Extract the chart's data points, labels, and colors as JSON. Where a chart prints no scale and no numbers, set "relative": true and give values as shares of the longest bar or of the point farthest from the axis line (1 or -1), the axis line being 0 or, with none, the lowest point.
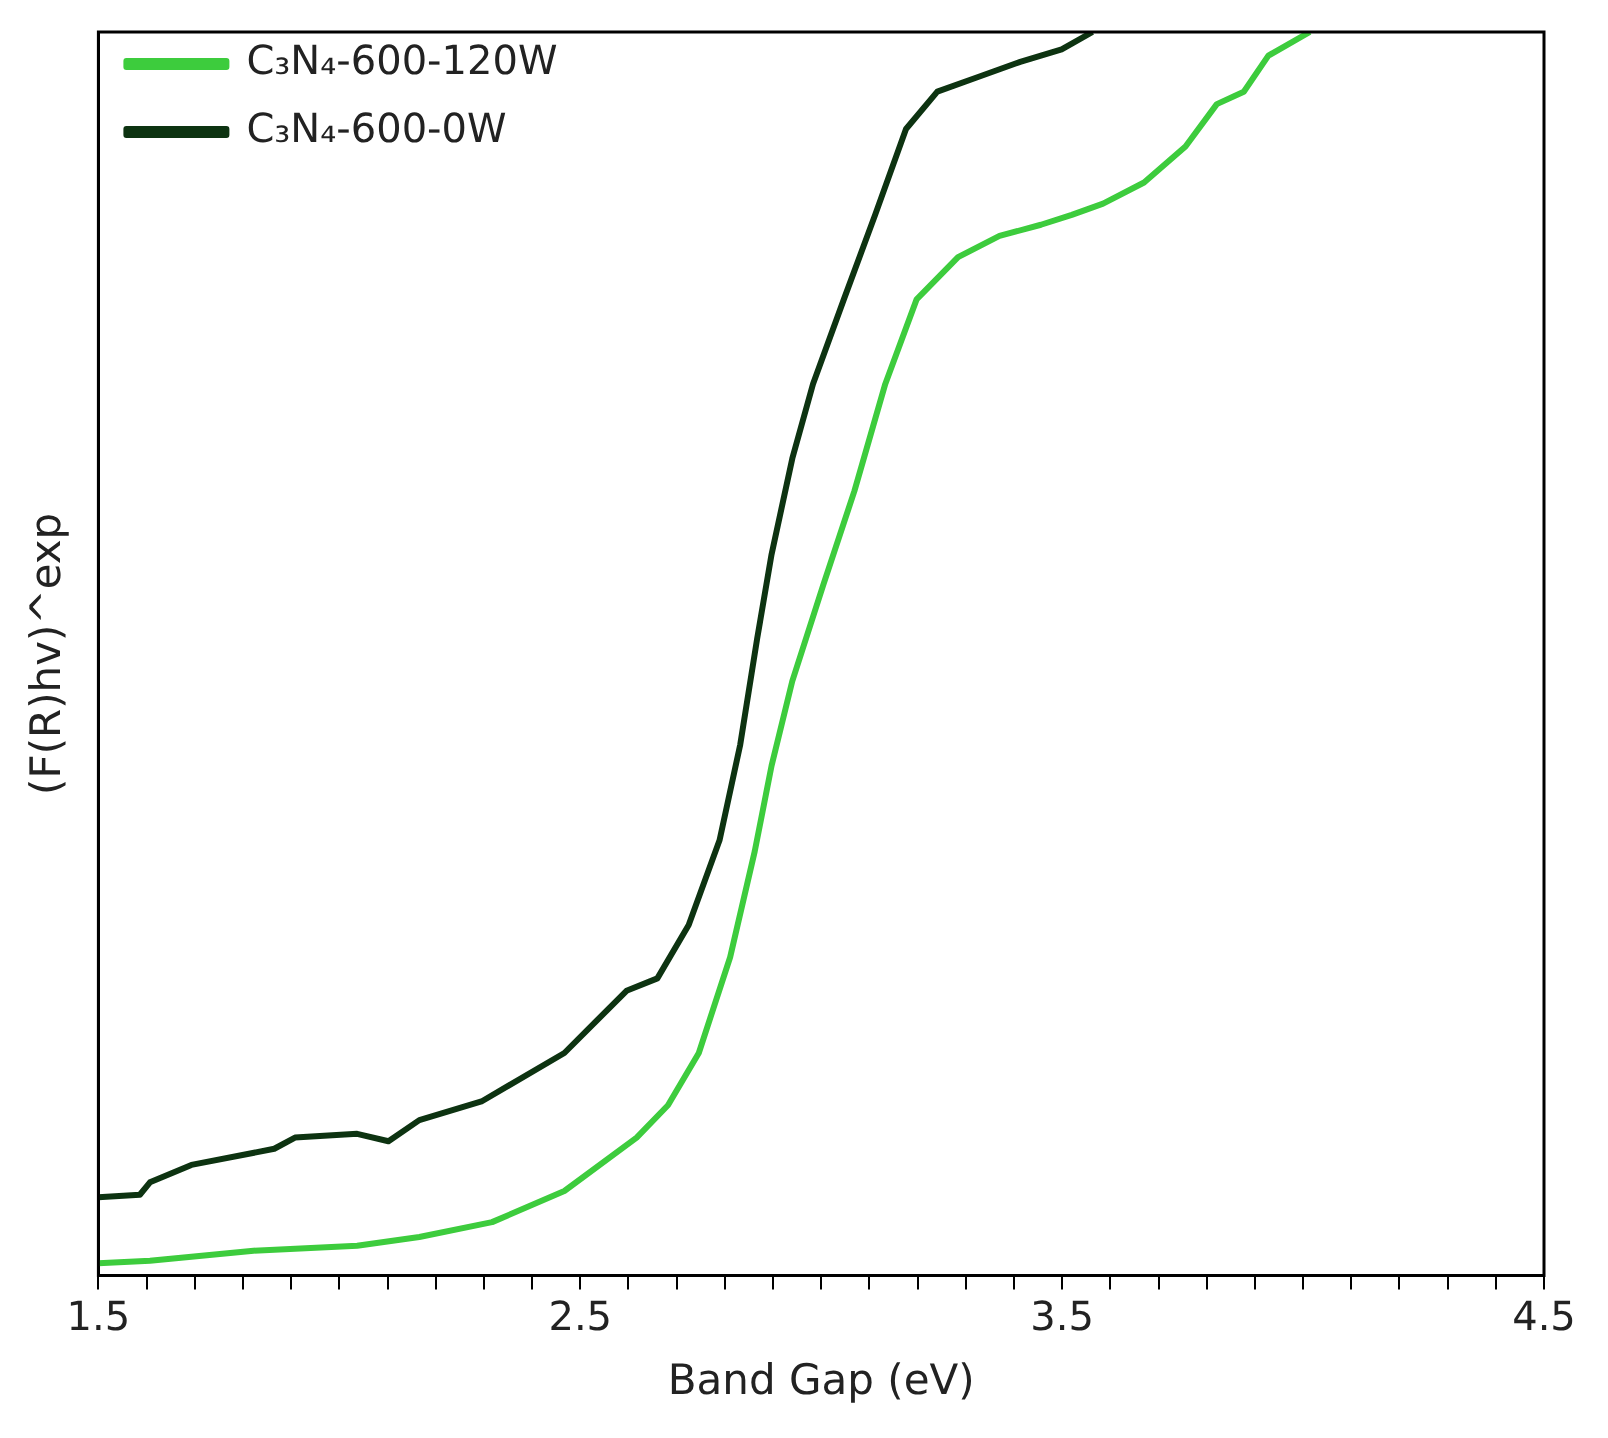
{
  "chart_data": {
    "type": "line",
    "xlabel": "Band Gap (eV)",
    "ylabel": "(F(R)hv)^exp",
    "relative": true,
    "legend": "top left",
    "marker": "none",
    "line_style": "solid",
    "grid": false,
    "xlim": [
      1.5,
      4.5
    ],
    "xticks": [
      1.5,
      {
        "value": 1.6,
        "label": null
      },
      {
        "value": 1.7,
        "label": null
      },
      {
        "value": 1.8,
        "label": null
      },
      {
        "value": 1.9,
        "label": null
      },
      {
        "value": 2.0,
        "label": null
      },
      {
        "value": 2.1,
        "label": null
      },
      {
        "value": 2.2,
        "label": null
      },
      {
        "value": 2.3,
        "label": null
      },
      {
        "value": 2.4,
        "label": null
      },
      2.5,
      {
        "value": 2.6,
        "label": null
      },
      {
        "value": 2.7,
        "label": null
      },
      {
        "value": 2.8,
        "label": null
      },
      {
        "value": 2.9,
        "label": null
      },
      {
        "value": 3.0,
        "label": null
      },
      {
        "value": 3.1,
        "label": null
      },
      {
        "value": 3.2,
        "label": null
      },
      {
        "value": 3.3,
        "label": null
      },
      {
        "value": 3.4,
        "label": null
      },
      3.5,
      {
        "value": 3.6,
        "label": null
      },
      {
        "value": 3.7,
        "label": null
      },
      {
        "value": 3.8,
        "label": null
      },
      {
        "value": 3.9,
        "label": null
      },
      {
        "value": 4.0,
        "label": null
      },
      {
        "value": 4.1,
        "label": null
      },
      {
        "value": 4.2,
        "label": null
      },
      {
        "value": 4.3,
        "label": null
      },
      {
        "value": 4.4,
        "label": null
      },
      4.5
    ],
    "series": [
      {
        "name": "C₃N₄-600-120W",
        "color": "#3dcc3d",
        "x": [
          1.5,
          1.607,
          1.822,
          2.037,
          2.166,
          2.317,
          2.467,
          2.617,
          2.682,
          2.746,
          2.811,
          2.862,
          2.897,
          2.94,
          3.004,
          3.069,
          3.133,
          3.198,
          3.284,
          3.37,
          3.456,
          3.52,
          3.585,
          3.67,
          3.756,
          3.821,
          3.877,
          3.928,
          4.014
        ],
        "values": [
          0.01,
          0.012,
          0.02,
          0.024,
          0.031,
          0.043,
          0.068,
          0.111,
          0.137,
          0.179,
          0.256,
          0.341,
          0.41,
          0.478,
          0.555,
          0.631,
          0.717,
          0.785,
          0.819,
          0.836,
          0.845,
          0.853,
          0.862,
          0.879,
          0.908,
          0.942,
          0.952,
          0.981,
          1
        ]
      },
      {
        "name": "C₃N₄-600-0W",
        "color": "#0d3311",
        "x": [
          1.5,
          1.586,
          1.607,
          1.693,
          1.865,
          1.908,
          2.037,
          2.102,
          2.166,
          2.295,
          2.467,
          2.596,
          2.66,
          2.725,
          2.789,
          2.832,
          2.867,
          2.897,
          2.94,
          2.983,
          3.047,
          3.112,
          3.176,
          3.241,
          3.327,
          3.413,
          3.499,
          3.563
        ],
        "values": [
          0.063,
          0.065,
          0.075,
          0.089,
          0.102,
          0.111,
          0.114,
          0.108,
          0.125,
          0.14,
          0.179,
          0.229,
          0.239,
          0.282,
          0.35,
          0.427,
          0.512,
          0.58,
          0.657,
          0.717,
          0.785,
          0.853,
          0.922,
          0.952,
          0.964,
          0.976,
          0.986,
          1
        ]
      }
    ]
  }
}
